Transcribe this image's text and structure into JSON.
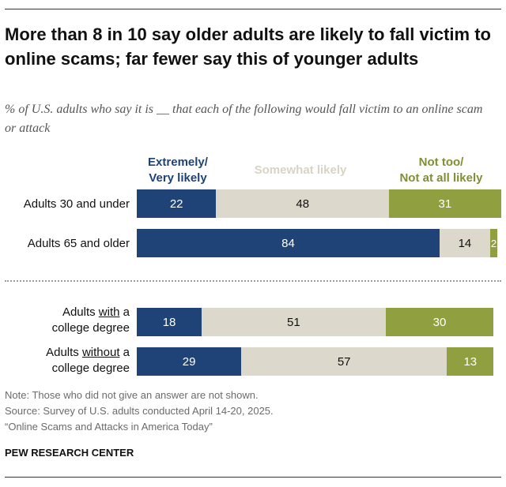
{
  "title": "More than 8 in 10 say older adults are likely to fall victim to online scams; far fewer say this of younger adults",
  "subtitle": "% of U.S. adults who say it is __ that each of the following would fall victim to an online scam or attack",
  "chart_data": {
    "type": "bar",
    "orientation": "horizontal",
    "stacked": true,
    "title": "More than 8 in 10 say older adults are likely to fall victim to online scams; far fewer say this of younger adults",
    "categories": [
      "Adults 30 and under",
      "Adults 65 and older",
      "Adults with a college degree",
      "Adults without a college degree"
    ],
    "category_labels": [
      {
        "line1": "Adults 30 and under",
        "line2": ""
      },
      {
        "line1": "Adults 65 and older",
        "line2": ""
      },
      {
        "pre": "Adults ",
        "emph": "with",
        "post": " a",
        "line2": "college degree"
      },
      {
        "pre": "Adults ",
        "emph": "without",
        "post": " a",
        "line2": "college degree"
      }
    ],
    "series": [
      {
        "name": "Extremely/ Very likely",
        "legend_line1": "Extremely/",
        "legend_line2": "Very likely",
        "color": "#1f4277",
        "values": [
          22,
          84,
          18,
          29
        ]
      },
      {
        "name": "Somewhat likely",
        "legend_line1": "Somewhat likely",
        "legend_line2": "",
        "color": "#dcd9cc",
        "values": [
          48,
          14,
          51,
          57
        ]
      },
      {
        "name": "Not too/ Not at all likely",
        "legend_line1": "Not too/",
        "legend_line2": "Not at all likely",
        "color": "#90a040",
        "values": [
          31,
          2,
          30,
          13
        ]
      }
    ],
    "xlim": [
      0,
      100
    ],
    "xlabel": "",
    "ylabel": ""
  },
  "notes": {
    "note": "Note: Those who did not give an answer are not shown.",
    "source": "Source: Survey of U.S. adults conducted April 14-20, 2025.",
    "report": "“Online Scams and Attacks in America Today”"
  },
  "brand": "PEW RESEARCH CENTER"
}
